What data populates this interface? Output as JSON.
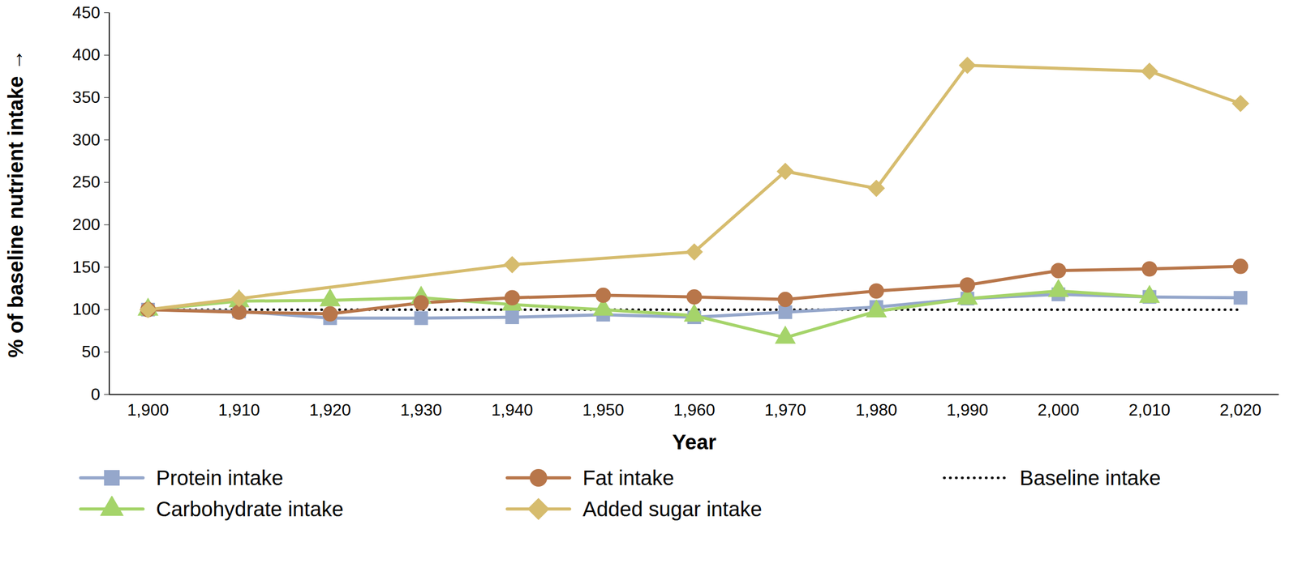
{
  "chart_data": {
    "type": "line",
    "x_label": "Year",
    "y_label": "% of baseline nutrient intake",
    "x": [
      1900,
      1910,
      1920,
      1930,
      1940,
      1950,
      1960,
      1970,
      1980,
      1990,
      2000,
      2010,
      2020
    ],
    "ylim": [
      0,
      450
    ],
    "yticks": [
      0,
      50,
      100,
      150,
      200,
      250,
      300,
      350,
      400,
      450
    ],
    "grid": false,
    "legend": "bottom",
    "series": [
      {
        "name": "Protein intake",
        "color": "#95a7cb",
        "marker": "square",
        "line_style": "solid",
        "values": [
          100,
          98,
          90,
          90,
          91,
          94,
          91,
          97,
          103,
          113,
          118,
          115,
          114
        ]
      },
      {
        "name": "Carbohydrate intake",
        "color": "#a5d46a",
        "marker": "triangle",
        "line_style": "solid",
        "values": [
          100,
          110,
          111,
          114,
          106,
          100,
          93,
          67,
          98,
          113,
          122,
          115,
          null
        ]
      },
      {
        "name": "Fat intake",
        "color": "#b8764a",
        "marker": "circle",
        "line_style": "solid",
        "values": [
          100,
          97,
          95,
          108,
          114,
          117,
          115,
          112,
          122,
          129,
          146,
          148,
          151
        ]
      },
      {
        "name": "Added sugar intake",
        "color": "#d6bc6e",
        "marker": "diamond",
        "line_style": "solid",
        "values": [
          100,
          113,
          null,
          null,
          153,
          null,
          168,
          263,
          243,
          388,
          null,
          381,
          343
        ]
      },
      {
        "name": "Baseline intake",
        "color": "#000000",
        "marker": "none",
        "line_style": "dotted",
        "values": [
          100,
          100,
          100,
          100,
          100,
          100,
          100,
          100,
          100,
          100,
          100,
          100,
          100
        ]
      }
    ]
  }
}
